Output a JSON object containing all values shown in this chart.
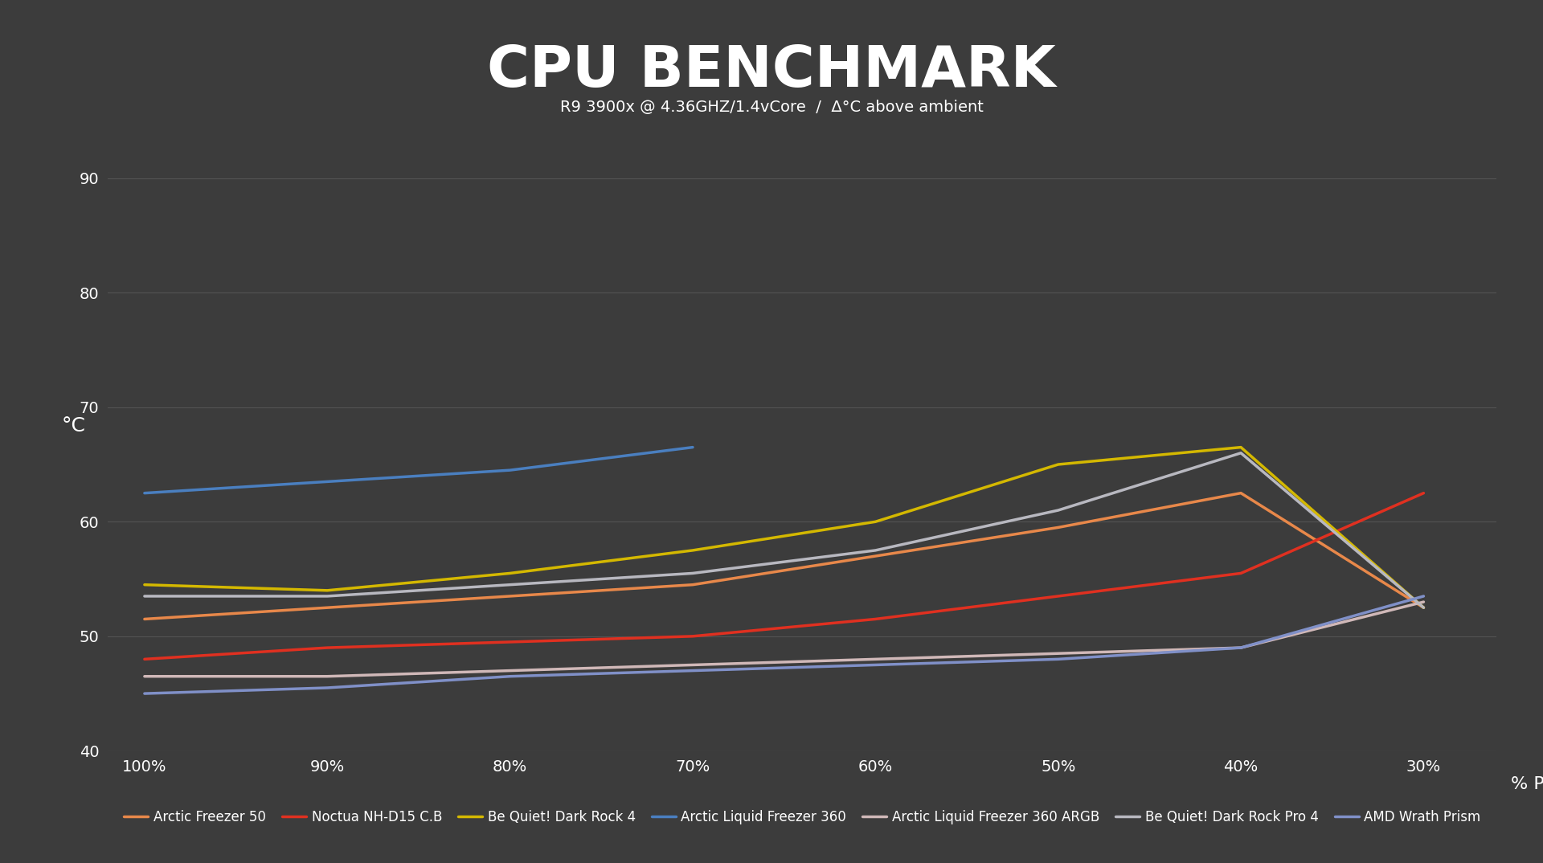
{
  "title": "CPU BENCHMARK",
  "subtitle": "R9 3900x @ 4.36GHZ/1.4vCore  /  Δ°C above ambient",
  "xlabel": "% PWM",
  "ylabel": "°C",
  "background_color": "#3c3c3c",
  "text_color": "#ffffff",
  "grid_color": "#5a5a5a",
  "x_labels": [
    "100%",
    "90%",
    "80%",
    "70%",
    "60%",
    "50%",
    "40%",
    "30%"
  ],
  "x_values": [
    0,
    1,
    2,
    3,
    4,
    5,
    6,
    7
  ],
  "ylim": [
    40,
    95
  ],
  "yticks": [
    40,
    50,
    60,
    70,
    80,
    90
  ],
  "series": [
    {
      "name": "Arctic Freezer 50",
      "color": "#e8884a",
      "values": [
        51.5,
        52.5,
        53.5,
        54.5,
        57.0,
        59.5,
        62.5,
        52.5
      ]
    },
    {
      "name": "Noctua NH-D15 C.B",
      "color": "#e03020",
      "values": [
        48.0,
        49.0,
        49.5,
        50.0,
        51.5,
        53.5,
        55.5,
        62.5
      ]
    },
    {
      "name": "Be Quiet! Dark Rock 4",
      "color": "#d4b800",
      "values": [
        54.5,
        54.0,
        55.5,
        57.5,
        60.0,
        65.0,
        66.5,
        52.5
      ]
    },
    {
      "name": "Arctic Liquid Freezer 360",
      "color": "#4a7fc0",
      "values": [
        62.5,
        63.5,
        64.5,
        66.5,
        null,
        null,
        null,
        null
      ]
    },
    {
      "name": "Arctic Liquid Freezer 360 ARGB",
      "color": "#d0b8b8",
      "values": [
        46.5,
        46.5,
        47.0,
        47.5,
        48.0,
        48.5,
        49.0,
        53.0
      ]
    },
    {
      "name": "Be Quiet! Dark Rock Pro 4",
      "color": "#b8b8c0",
      "values": [
        53.5,
        53.5,
        54.5,
        55.5,
        57.5,
        61.0,
        66.0,
        52.5
      ]
    },
    {
      "name": "AMD Wrath Prism",
      "color": "#8090c8",
      "values": [
        45.0,
        45.5,
        46.5,
        47.0,
        47.5,
        48.0,
        49.0,
        53.5
      ]
    }
  ],
  "title_fontsize": 52,
  "subtitle_fontsize": 14,
  "axis_label_fontsize": 16,
  "tick_fontsize": 14,
  "legend_fontsize": 12,
  "line_width": 2.5
}
